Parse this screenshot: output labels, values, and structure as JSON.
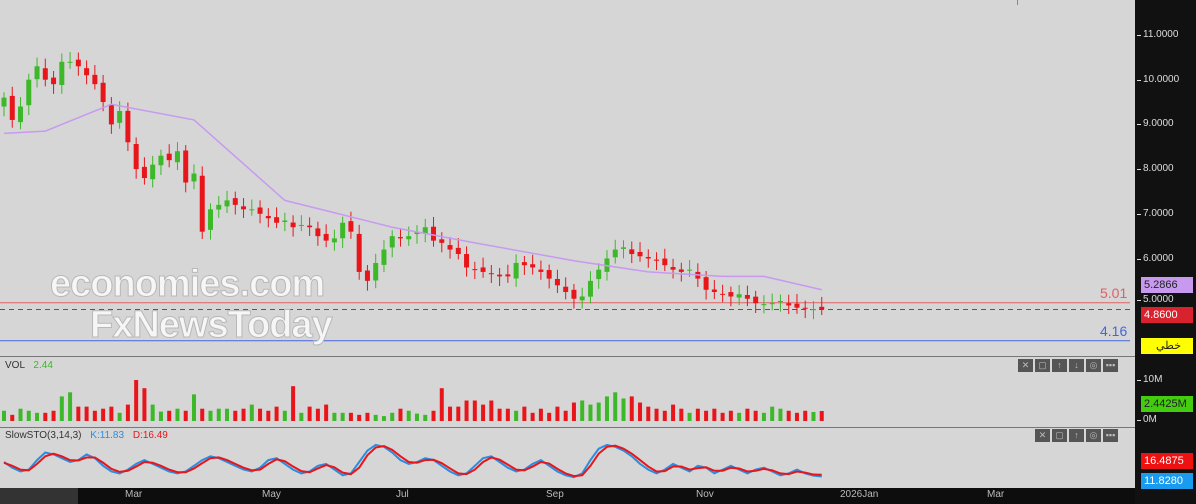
{
  "watermark": {
    "line1": "economies.com",
    "line2": "FxNewsToday"
  },
  "price_axis": {
    "ticks": [
      "11.0000",
      "10.0000",
      "9.0000",
      "8.0000",
      "7.0000",
      "6.0000"
    ],
    "tick_values": [
      11,
      10,
      9,
      8,
      7,
      6
    ],
    "ma_tag": "5.2866",
    "last_tag": "4.8600",
    "hidden_tag": "5.0000",
    "line_tag": "خطي"
  },
  "hlines": [
    {
      "label": "5.01",
      "value": 5.01,
      "color": "#e06060",
      "style": "solid"
    },
    {
      "label": "4.16",
      "value": 4.16,
      "color": "#4466dd",
      "style": "solid"
    },
    {
      "value": 4.86,
      "color": "#b03040",
      "style": "dashed"
    }
  ],
  "colors": {
    "up": "#3cb829",
    "down": "#e8151a",
    "ma": "#c79af0",
    "k": "#2a8de0",
    "d": "#e8151a"
  },
  "vol_pane": {
    "title": "VOL",
    "value": "2.44",
    "ticks": [
      "10M",
      "0M"
    ],
    "tag": "2.4425M"
  },
  "sto_pane": {
    "title": "SlowSTO(3,14,3)",
    "k_label": "K:11.83",
    "d_label": "D:16.49",
    "d_tag": "16.4875",
    "k_tag": "11.8280"
  },
  "pane_buttons": [
    "✕",
    "▢",
    "↑",
    "↓",
    "◎",
    "▪▪▪"
  ],
  "time_axis": [
    "Mar",
    "May",
    "Jul",
    "Sep",
    "Nov",
    "2026Jan",
    "Mar"
  ],
  "chart_data": {
    "type": "candlestick",
    "ylim": [
      4.0,
      11.3
    ],
    "closes": [
      9.6,
      9.1,
      9.4,
      10.0,
      10.3,
      10.0,
      9.9,
      10.4,
      10.4,
      10.3,
      10.1,
      9.9,
      9.5,
      9.0,
      9.3,
      8.6,
      8.0,
      7.8,
      8.1,
      8.3,
      8.2,
      8.4,
      7.7,
      7.9,
      6.6,
      7.1,
      7.2,
      7.3,
      7.2,
      7.1,
      7.1,
      7.0,
      6.9,
      6.8,
      6.85,
      6.7,
      6.75,
      6.7,
      6.5,
      6.4,
      6.45,
      6.8,
      6.6,
      5.7,
      5.5,
      5.9,
      6.2,
      6.5,
      6.45,
      6.5,
      6.6,
      6.7,
      6.4,
      6.35,
      6.2,
      6.1,
      5.8,
      5.75,
      5.7,
      5.65,
      5.6,
      5.6,
      5.9,
      5.85,
      5.8,
      5.7,
      5.55,
      5.4,
      5.25,
      5.1,
      5.15,
      5.5,
      5.75,
      6.0,
      6.2,
      6.25,
      6.1,
      6.05,
      6.0,
      5.95,
      5.85,
      5.75,
      5.7,
      5.75,
      5.55,
      5.3,
      5.25,
      5.2,
      5.15,
      5.2,
      5.1,
      5.0,
      4.98,
      5.0,
      5.05,
      4.95,
      4.9,
      4.88,
      4.87,
      4.86
    ],
    "ma_points": [
      [
        0,
        8.8
      ],
      [
        5,
        8.85
      ],
      [
        13,
        9.45
      ],
      [
        23,
        9.1
      ],
      [
        34,
        7.3
      ],
      [
        47,
        6.7
      ],
      [
        57,
        6.35
      ],
      [
        69,
        5.95
      ],
      [
        78,
        5.7
      ],
      [
        87,
        5.6
      ],
      [
        92,
        5.6
      ],
      [
        99,
        5.3
      ]
    ],
    "volume_m": [
      2.5,
      1.5,
      3,
      2.5,
      2,
      2,
      2.5,
      6,
      7,
      3.5,
      3.5,
      2.5,
      3,
      3.5,
      2,
      4,
      10,
      8,
      4,
      2.3,
      2.5,
      3,
      2.5,
      6.5,
      3,
      2.5,
      3,
      3,
      2.5,
      3,
      4,
      3,
      2.5,
      3.5,
      2.5,
      8.5,
      2,
      3.5,
      3,
      4,
      2,
      2,
      2,
      1.5,
      2,
      1.5,
      1.2,
      2,
      3,
      2.5,
      1.8,
      1.5,
      2.5,
      8,
      3.5,
      3.5,
      5,
      5,
      4,
      5,
      3,
      3,
      2.5,
      3.5,
      2,
      3,
      2,
      3.5,
      2.5,
      4.5,
      5,
      4,
      4.5,
      6,
      7,
      5.5,
      6,
      4.5,
      3.5,
      3,
      2.5,
      4,
      3,
      2,
      3,
      2.5,
      3,
      2,
      2.5,
      2,
      3,
      2.5,
      2,
      3.5,
      3,
      2.5,
      2,
      2.5,
      2.2,
      2.44
    ],
    "stoch_k": [
      50,
      35,
      25,
      30,
      55,
      75,
      70,
      60,
      50,
      55,
      70,
      60,
      40,
      25,
      20,
      30,
      45,
      55,
      45,
      35,
      25,
      20,
      25,
      40,
      55,
      65,
      60,
      50,
      40,
      30,
      25,
      35,
      55,
      60,
      45,
      30,
      20,
      25,
      40,
      45,
      30,
      15,
      20,
      50,
      80,
      95,
      90,
      75,
      55,
      45,
      50,
      60,
      55,
      40,
      25,
      15,
      20,
      40,
      60,
      65,
      50,
      35,
      25,
      30,
      45,
      55,
      40,
      25,
      15,
      10,
      20,
      55,
      85,
      95,
      90,
      80,
      65,
      45,
      30,
      20,
      30,
      45,
      35,
      25,
      40,
      35,
      20,
      30,
      40,
      30,
      20,
      30,
      35,
      25,
      15,
      20,
      30,
      20,
      14,
      11.83
    ],
    "stoch_d": [
      48,
      40,
      30,
      28,
      45,
      65,
      72,
      65,
      55,
      54,
      62,
      62,
      48,
      32,
      24,
      27,
      38,
      50,
      48,
      40,
      30,
      23,
      23,
      33,
      47,
      60,
      62,
      55,
      45,
      35,
      28,
      30,
      45,
      57,
      52,
      38,
      26,
      23,
      33,
      42,
      36,
      22,
      18,
      35,
      68,
      88,
      92,
      82,
      65,
      50,
      48,
      55,
      56,
      47,
      33,
      20,
      18,
      30,
      50,
      62,
      56,
      43,
      30,
      28,
      38,
      50,
      46,
      32,
      20,
      13,
      15,
      40,
      72,
      90,
      93,
      85,
      72,
      55,
      38,
      25,
      26,
      38,
      38,
      30,
      34,
      36,
      27,
      27,
      35,
      33,
      25,
      27,
      32,
      28,
      20,
      18,
      25,
      22,
      17,
      16.49
    ],
    "ylim_volume": [
      0,
      10
    ],
    "ylim_stoch": [
      0,
      100
    ]
  }
}
